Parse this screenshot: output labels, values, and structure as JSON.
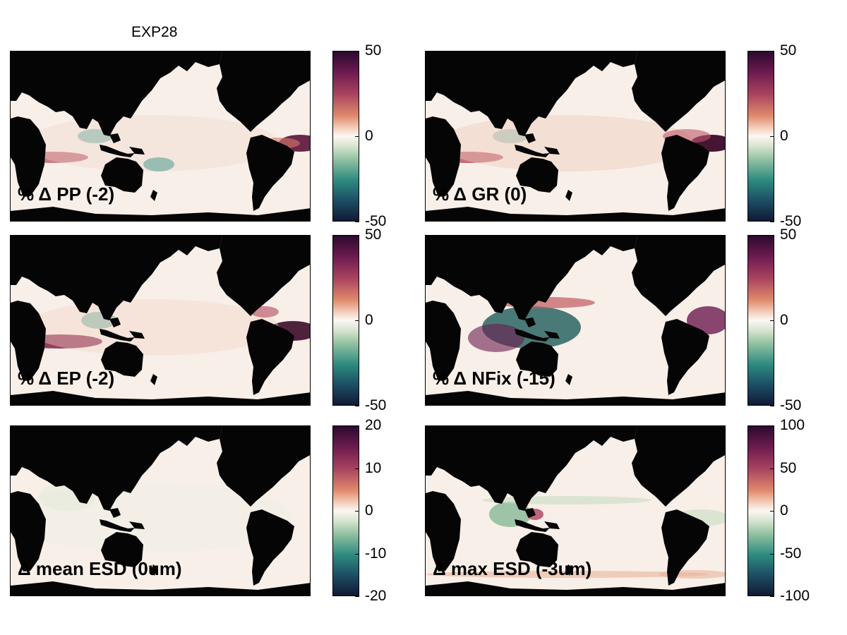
{
  "figure_title": "EXP28",
  "panels": [
    {
      "label": "% Δ PP (-2)",
      "colorbar_ticks": [
        "50",
        "0",
        "-50"
      ]
    },
    {
      "label": "% Δ GR (0)",
      "colorbar_ticks": [
        "50",
        "0",
        "-50"
      ]
    },
    {
      "label": "% Δ EP (-2)",
      "colorbar_ticks": [
        "50",
        "0",
        "-50"
      ]
    },
    {
      "label": "% Δ NFix (-15)",
      "colorbar_ticks": [
        "50",
        "0",
        "-50"
      ]
    },
    {
      "label": "Δ mean ESD (0um)",
      "colorbar_ticks": [
        "20",
        "10",
        "0",
        "-10",
        "-20"
      ]
    },
    {
      "label": "Δ max ESD (-3um)",
      "colorbar_ticks": [
        "100",
        "50",
        "0",
        "-50",
        "-100"
      ]
    }
  ],
  "colors": {
    "land": "#050505",
    "ocean_neutral": "#f8efe9",
    "positive": "#6b1a4f",
    "negative": "#2d8b80"
  }
}
